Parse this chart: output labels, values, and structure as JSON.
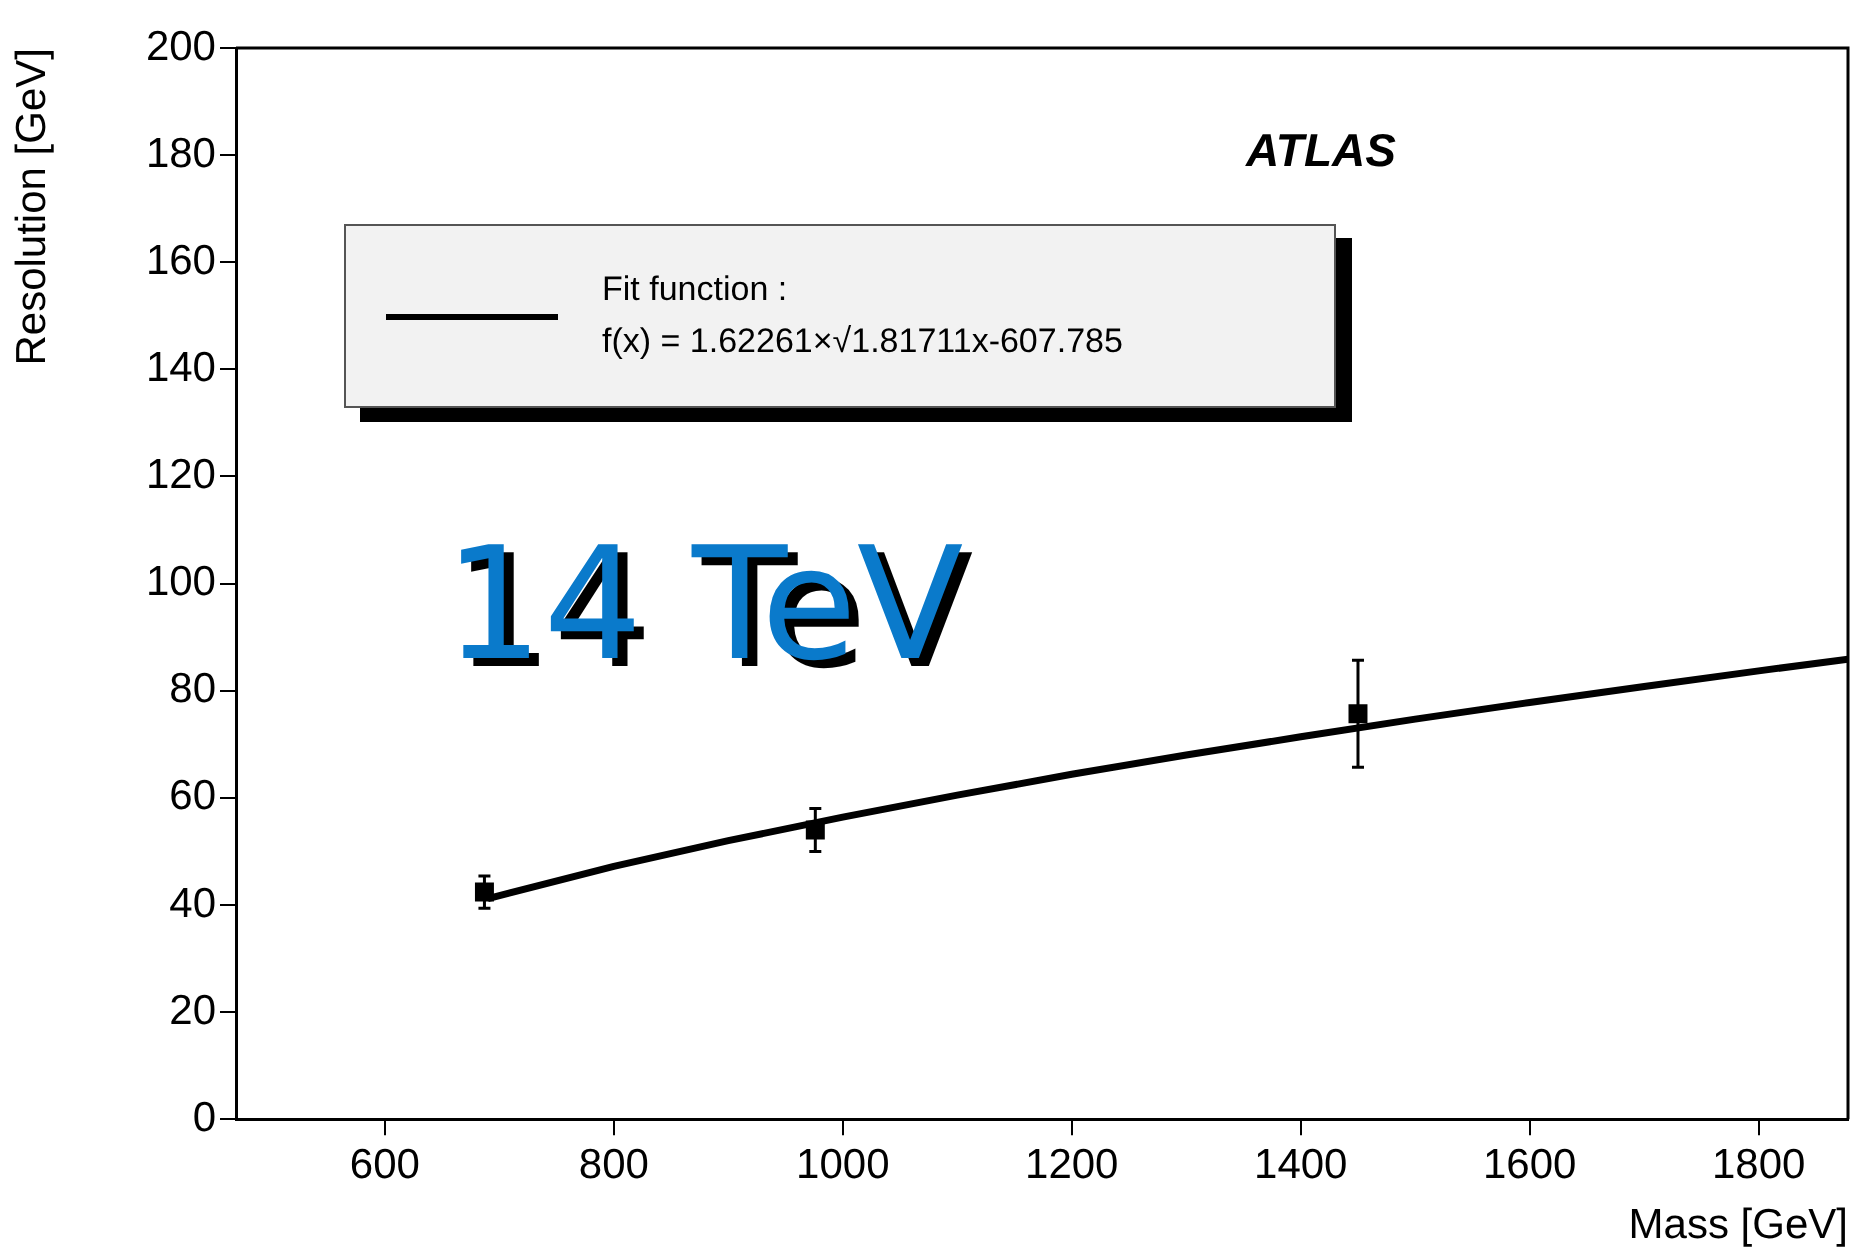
{
  "chart_data": {
    "type": "scatter",
    "xlabel": "Mass [GeV]",
    "ylabel": "Resolution [GeV]",
    "xlim": [
      470,
      1878
    ],
    "xticks": [
      600,
      800,
      1000,
      1200,
      1400,
      1600,
      1800
    ],
    "ylim": [
      0,
      200
    ],
    "yticks": [
      0,
      20,
      40,
      60,
      80,
      100,
      120,
      140,
      160,
      180,
      200
    ],
    "grid": false,
    "legend": "top left",
    "marker": "square",
    "annotations": [
      "ATLAS",
      "14 TeV"
    ],
    "series": [
      {
        "color": "#000000",
        "x": [
          687,
          976,
          1450
        ],
        "values": [
          42.4,
          54,
          75.7
        ],
        "errors": [
          3,
          4,
          10
        ]
      },
      {
        "type": "line",
        "name": "Fit function :\nf(x) = 1.62261×√1.81711x-607.785",
        "color": "#000000",
        "line_style": "solid",
        "marker": "none",
        "x": [
          690,
          800,
          900,
          1000,
          1100,
          1200,
          1300,
          1400,
          1500,
          1600,
          1700,
          1800,
          1878
        ],
        "values": [
          41.2,
          47.2,
          52.0,
          56.4,
          60.5,
          64.4,
          68.0,
          71.4,
          74.7,
          77.8,
          80.8,
          83.7,
          85.9
        ]
      }
    ]
  }
}
